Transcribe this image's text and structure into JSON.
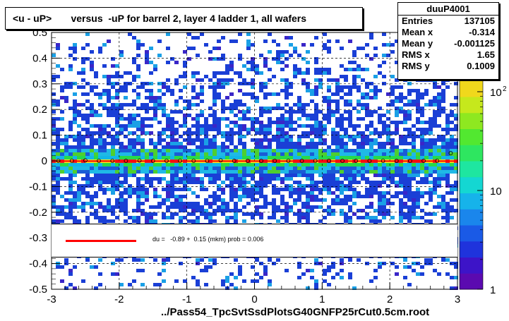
{
  "title": "<u - uP>       versus  -uP for barrel 2, layer 4 ladder 1, all wafers",
  "x_axis_title": "../Pass54_TpcSvtSsdPlotsG40GNFP25rCut0.5cm.root",
  "stats": {
    "name": "duuP4001",
    "rows": [
      {
        "label": "Entries",
        "value": "137105"
      },
      {
        "label": "Mean x",
        "value": "-0.314"
      },
      {
        "label": "Mean y",
        "value": "-0.001125"
      },
      {
        "label": "RMS x",
        "value": "1.65"
      },
      {
        "label": "RMS y",
        "value": "0.1009"
      }
    ]
  },
  "legend": {
    "text": "du =   -0.89 +  0.15 (mkm) prob = 0.006",
    "line_color": "#ff0000"
  },
  "chart_data": {
    "type": "heatmap",
    "xlim": [
      -3,
      3
    ],
    "ylim": [
      -0.5,
      0.5
    ],
    "x_ticks": [
      -3,
      -2,
      -1,
      0,
      1,
      2,
      3
    ],
    "y_ticks": [
      -0.5,
      -0.4,
      -0.3,
      -0.2,
      -0.1,
      0,
      0.1,
      0.2,
      0.3,
      0.4,
      0.5
    ],
    "x_tick_labels": [
      "-3",
      "-2",
      "-1",
      "0",
      "1",
      "2",
      "3"
    ],
    "y_tick_labels": [
      "-0.5",
      "-0.4",
      "-0.3",
      "-0.2",
      "-0.1",
      "0",
      "0.1",
      "0.2",
      "0.3",
      "0.4",
      "0.5"
    ],
    "color_scale": "log",
    "color_ticks": [
      1,
      10,
      100
    ],
    "color_tick_labels": [
      "1",
      "10",
      "10"
    ],
    "color_tick_exponent": "2",
    "grid": true,
    "profile_points": {
      "x": [
        -2.9,
        -2.7,
        -2.5,
        -2.3,
        -2.1,
        -1.9,
        -1.7,
        -1.5,
        -1.3,
        -1.1,
        -0.9,
        -0.7,
        -0.5,
        -0.3,
        -0.1,
        0.1,
        0.3,
        0.5,
        0.7,
        0.9,
        1.1,
        1.3,
        1.5,
        1.7,
        1.9,
        2.1,
        2.3,
        2.5,
        2.7,
        2.9
      ],
      "y": [
        0.0,
        0.0,
        0.002,
        0.0,
        0.0,
        0.0,
        0.001,
        0.0,
        0.0,
        0.0,
        0.0,
        0.0,
        0.002,
        0.0,
        0.0,
        0.0,
        0.0,
        0.0,
        0.0,
        0.0,
        0.0,
        0.0,
        0.0,
        0.0,
        0.0,
        0.0,
        0.0,
        0.0,
        0.0,
        0.03
      ]
    },
    "fit_line": {
      "x": [
        -3,
        3
      ],
      "y": [
        -0.00089,
        -0.00089
      ],
      "color": "#ff0000"
    }
  }
}
